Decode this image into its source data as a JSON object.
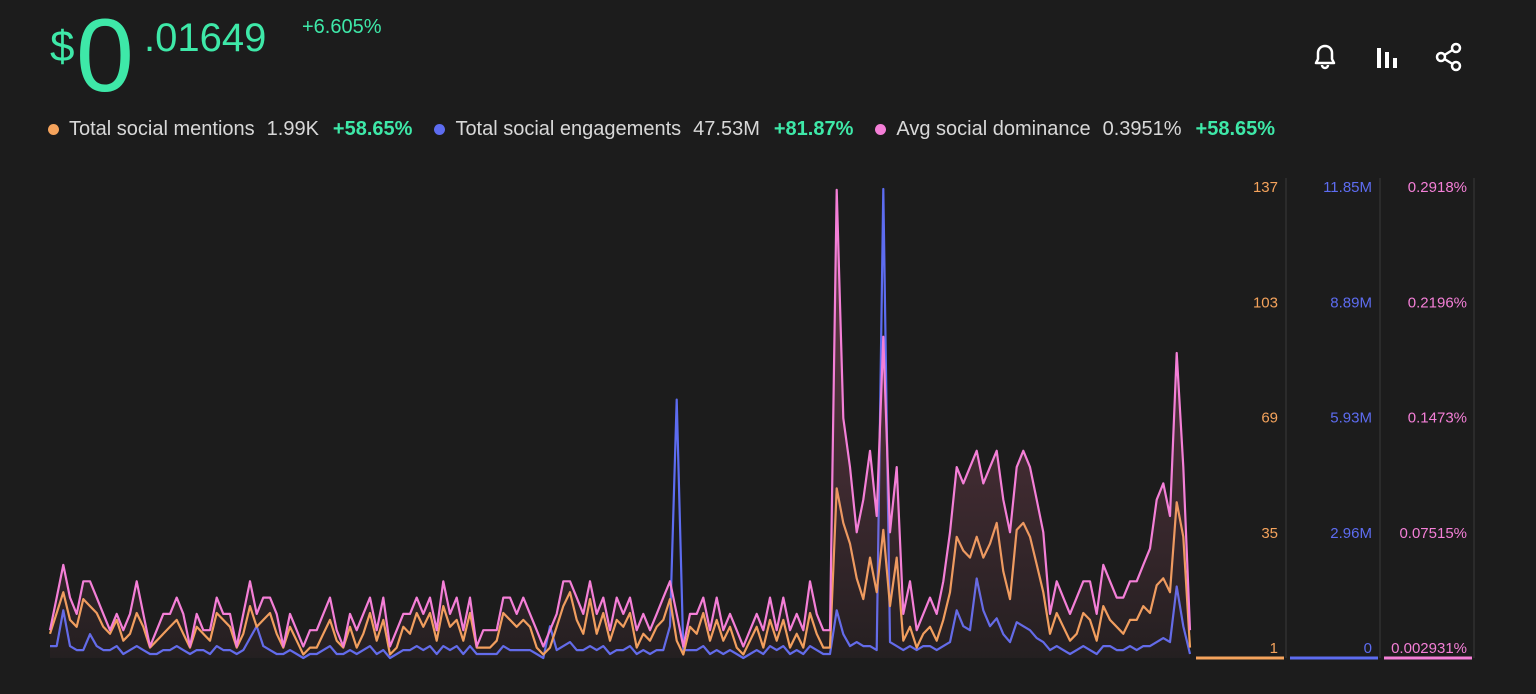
{
  "price": {
    "currency": "$",
    "integer": "0",
    "decimal": ".01649",
    "change": "+6.605%"
  },
  "actions": [
    {
      "name": "bell-icon"
    },
    {
      "name": "bar-chart-icon"
    },
    {
      "name": "share-icon"
    }
  ],
  "legend": [
    {
      "label": "Total social mentions",
      "value": "1.99K",
      "change": "+58.65%",
      "color": "#f5a35c"
    },
    {
      "label": "Total social engagements",
      "value": "47.53M",
      "change": "+81.87%",
      "color": "#5d6cf0"
    },
    {
      "label": "Avg social dominance",
      "value": "0.3951%",
      "change": "+58.65%",
      "color": "#f47fd7"
    }
  ],
  "chart_data": {
    "type": "line",
    "series": [
      {
        "name": "Total social mentions",
        "color": "#f5a35c",
        "axis_ticks": [
          "137",
          "103",
          "69",
          "35",
          "1"
        ],
        "ylim": [
          1,
          137
        ],
        "values": [
          8,
          14,
          20,
          12,
          10,
          18,
          16,
          14,
          10,
          8,
          12,
          6,
          8,
          14,
          10,
          4,
          6,
          8,
          10,
          12,
          8,
          4,
          10,
          8,
          6,
          14,
          12,
          10,
          4,
          8,
          16,
          10,
          12,
          14,
          8,
          4,
          10,
          6,
          2,
          4,
          4,
          8,
          12,
          6,
          4,
          10,
          4,
          8,
          14,
          6,
          12,
          2,
          4,
          10,
          8,
          14,
          10,
          14,
          6,
          16,
          10,
          12,
          6,
          14,
          4,
          4,
          4,
          6,
          14,
          12,
          10,
          12,
          10,
          4,
          2,
          4,
          10,
          16,
          20,
          12,
          8,
          18,
          8,
          14,
          6,
          12,
          10,
          14,
          4,
          8,
          6,
          10,
          12,
          18,
          6,
          2,
          10,
          8,
          14,
          6,
          12,
          6,
          10,
          4,
          2,
          6,
          10,
          4,
          12,
          6,
          12,
          4,
          8,
          4,
          14,
          8,
          4,
          4,
          50,
          40,
          34,
          24,
          18,
          30,
          20,
          38,
          16,
          30,
          6,
          10,
          4,
          8,
          10,
          6,
          12,
          20,
          36,
          32,
          30,
          36,
          30,
          34,
          40,
          26,
          18,
          38,
          40,
          36,
          28,
          20,
          8,
          14,
          10,
          6,
          8,
          14,
          12,
          6,
          16,
          12,
          10,
          8,
          12,
          12,
          16,
          14,
          22,
          24,
          20,
          46,
          36,
          4
        ]
      },
      {
        "name": "Total social engagements",
        "color": "#5d6cf0",
        "axis_ticks": [
          "11.85M",
          "8.89M",
          "5.93M",
          "2.96M",
          "0"
        ],
        "ylim": [
          0,
          11.85
        ],
        "values": [
          0.3,
          0.3,
          1.2,
          0.3,
          0.2,
          0.2,
          0.6,
          0.3,
          0.2,
          0.2,
          0.3,
          0.1,
          0.2,
          0.3,
          0.2,
          0.1,
          0.1,
          0.2,
          0.2,
          0.3,
          0.2,
          0.1,
          0.2,
          0.2,
          0.1,
          0.3,
          0.2,
          0.2,
          0.1,
          0.2,
          0.5,
          0.8,
          0.3,
          0.2,
          0.1,
          0.1,
          0.2,
          0.1,
          0.0,
          0.1,
          0.1,
          0.2,
          0.3,
          0.1,
          0.1,
          0.2,
          0.1,
          0.2,
          0.3,
          0.1,
          0.2,
          0.0,
          0.1,
          0.2,
          0.2,
          0.3,
          0.2,
          0.3,
          0.1,
          0.3,
          0.2,
          0.3,
          0.1,
          0.3,
          0.1,
          0.1,
          0.1,
          0.1,
          0.3,
          0.2,
          0.2,
          0.2,
          0.2,
          0.1,
          0.0,
          0.8,
          0.2,
          0.3,
          0.4,
          0.2,
          0.2,
          0.3,
          0.2,
          0.3,
          0.1,
          0.2,
          0.2,
          0.3,
          0.1,
          0.2,
          0.1,
          0.2,
          0.2,
          0.8,
          6.5,
          0.2,
          0.2,
          0.2,
          0.3,
          0.1,
          0.2,
          0.1,
          0.2,
          0.1,
          0.0,
          0.1,
          0.2,
          0.1,
          0.3,
          0.2,
          0.3,
          0.1,
          0.2,
          0.1,
          0.3,
          0.2,
          0.1,
          0.1,
          1.2,
          0.6,
          0.3,
          0.4,
          0.3,
          0.3,
          0.2,
          11.8,
          0.4,
          0.3,
          0.2,
          0.3,
          0.2,
          0.3,
          0.3,
          0.2,
          0.3,
          0.4,
          1.2,
          0.8,
          0.7,
          2.0,
          1.2,
          0.8,
          1.0,
          0.6,
          0.4,
          0.9,
          0.8,
          0.7,
          0.5,
          0.4,
          0.2,
          0.3,
          0.2,
          0.1,
          0.2,
          0.3,
          0.2,
          0.1,
          0.3,
          0.3,
          0.2,
          0.2,
          0.3,
          0.2,
          0.3,
          0.3,
          0.4,
          0.5,
          0.4,
          1.8,
          0.8,
          0.1
        ]
      },
      {
        "name": "Avg social dominance",
        "color": "#f47fd7",
        "axis_ticks": [
          "0.2918%",
          "0.2196%",
          "0.1473%",
          "0.07515%",
          "0.002931%"
        ],
        "ylim": [
          0.002931,
          0.2918
        ],
        "values": [
          0.02,
          0.04,
          0.06,
          0.04,
          0.03,
          0.05,
          0.05,
          0.04,
          0.03,
          0.02,
          0.03,
          0.02,
          0.03,
          0.05,
          0.03,
          0.01,
          0.02,
          0.03,
          0.03,
          0.04,
          0.03,
          0.01,
          0.03,
          0.02,
          0.02,
          0.04,
          0.03,
          0.03,
          0.01,
          0.03,
          0.05,
          0.03,
          0.04,
          0.04,
          0.03,
          0.01,
          0.03,
          0.02,
          0.01,
          0.02,
          0.02,
          0.03,
          0.04,
          0.02,
          0.01,
          0.03,
          0.02,
          0.03,
          0.04,
          0.02,
          0.04,
          0.01,
          0.02,
          0.03,
          0.03,
          0.04,
          0.03,
          0.04,
          0.02,
          0.05,
          0.03,
          0.04,
          0.02,
          0.04,
          0.01,
          0.02,
          0.02,
          0.02,
          0.04,
          0.04,
          0.03,
          0.04,
          0.03,
          0.02,
          0.01,
          0.02,
          0.03,
          0.05,
          0.05,
          0.04,
          0.03,
          0.05,
          0.03,
          0.04,
          0.02,
          0.04,
          0.03,
          0.04,
          0.02,
          0.03,
          0.02,
          0.03,
          0.04,
          0.05,
          0.03,
          0.01,
          0.03,
          0.03,
          0.04,
          0.02,
          0.04,
          0.02,
          0.03,
          0.02,
          0.01,
          0.02,
          0.03,
          0.02,
          0.04,
          0.02,
          0.04,
          0.02,
          0.03,
          0.02,
          0.05,
          0.03,
          0.02,
          0.02,
          0.29,
          0.15,
          0.12,
          0.08,
          0.1,
          0.13,
          0.09,
          0.2,
          0.08,
          0.12,
          0.03,
          0.05,
          0.02,
          0.03,
          0.04,
          0.03,
          0.05,
          0.08,
          0.12,
          0.11,
          0.12,
          0.13,
          0.11,
          0.12,
          0.13,
          0.1,
          0.08,
          0.12,
          0.13,
          0.12,
          0.1,
          0.08,
          0.03,
          0.05,
          0.04,
          0.03,
          0.04,
          0.05,
          0.05,
          0.03,
          0.06,
          0.05,
          0.04,
          0.04,
          0.05,
          0.05,
          0.06,
          0.07,
          0.1,
          0.11,
          0.09,
          0.19,
          0.12,
          0.02
        ]
      }
    ],
    "grid": false,
    "legend_position": "top-left"
  }
}
